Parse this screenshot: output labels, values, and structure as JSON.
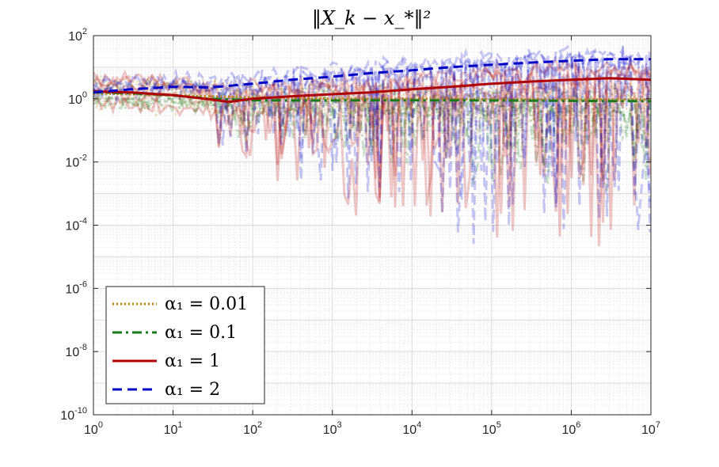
{
  "chart_data": {
    "type": "line",
    "title": "‖X_k − x_*‖²",
    "xlabel": "",
    "ylabel": "",
    "xscale": "log",
    "yscale": "log",
    "xlim": [
      1,
      10000000
    ],
    "ylim": [
      1e-10,
      100
    ],
    "grid": true,
    "legend_position": "bottom-left",
    "x_ticks": [
      {
        "base": "10",
        "exp": "0",
        "value": 1
      },
      {
        "base": "10",
        "exp": "1",
        "value": 10
      },
      {
        "base": "10",
        "exp": "2",
        "value": 100
      },
      {
        "base": "10",
        "exp": "3",
        "value": 1000
      },
      {
        "base": "10",
        "exp": "4",
        "value": 10000
      },
      {
        "base": "10",
        "exp": "5",
        "value": 100000
      },
      {
        "base": "10",
        "exp": "6",
        "value": 1000000
      },
      {
        "base": "10",
        "exp": "7",
        "value": 10000000
      }
    ],
    "y_ticks": [
      {
        "base": "10",
        "exp": "-10",
        "value": 1e-10
      },
      {
        "base": "10",
        "exp": "-8",
        "value": 1e-08
      },
      {
        "base": "10",
        "exp": "-6",
        "value": 1e-06
      },
      {
        "base": "10",
        "exp": "-4",
        "value": 0.0001
      },
      {
        "base": "10",
        "exp": "-2",
        "value": 0.01
      },
      {
        "base": "10",
        "exp": "0",
        "value": 1
      },
      {
        "base": "10",
        "exp": "2",
        "value": 100
      }
    ],
    "series": [
      {
        "name": "α₁ = 0.01",
        "legend_label": "α₁ = 0.01",
        "color": "#b8860b",
        "dash": "dotted",
        "x": [
          1,
          3,
          10,
          30,
          100,
          300,
          1000,
          3000,
          10000,
          30000,
          100000,
          300000,
          1000000,
          3000000,
          10000000
        ],
        "y": [
          1.5,
          1.4,
          1.3,
          1.2,
          1.1,
          1.05,
          1.0,
          1.0,
          1.0,
          0.98,
          0.97,
          0.96,
          0.95,
          0.95,
          0.95
        ]
      },
      {
        "name": "α₁ = 0.1",
        "legend_label": "α₁ = 0.1",
        "color": "#1a7a1a",
        "dash": "dashdot",
        "x": [
          1,
          3,
          10,
          30,
          100,
          300,
          1000,
          3000,
          10000,
          30000,
          100000,
          300000,
          1000000,
          3000000,
          10000000
        ],
        "y": [
          1.6,
          1.5,
          1.3,
          1.0,
          0.9,
          0.88,
          0.88,
          0.9,
          0.9,
          0.9,
          0.88,
          0.87,
          0.86,
          0.85,
          0.85
        ]
      },
      {
        "name": "α₁ = 1",
        "legend_label": "α₁ = 1",
        "color": "#b00000",
        "dash": "solid",
        "x": [
          1,
          3,
          10,
          30,
          50,
          100,
          300,
          1000,
          3000,
          10000,
          30000,
          100000,
          300000,
          1000000,
          3000000,
          10000000
        ],
        "y": [
          1.7,
          1.6,
          1.3,
          0.95,
          0.8,
          1.0,
          1.2,
          1.4,
          1.6,
          2.0,
          2.4,
          3.0,
          3.5,
          4.0,
          4.5,
          4.0
        ]
      },
      {
        "name": "α₁ = 2",
        "legend_label": "α₁ = 2",
        "color": "#0000c8",
        "dash": "dashed",
        "x": [
          1,
          3,
          10,
          30,
          100,
          300,
          1000,
          3000,
          10000,
          30000,
          100000,
          300000,
          1000000,
          3000000,
          10000000
        ],
        "y": [
          1.6,
          2.0,
          2.4,
          2.3,
          3.0,
          4.0,
          5.0,
          6.5,
          8.0,
          10.0,
          12.0,
          14.0,
          16.0,
          18.0,
          18.0
        ]
      }
    ]
  }
}
